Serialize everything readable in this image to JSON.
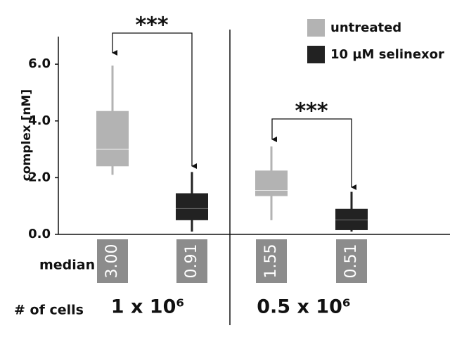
{
  "chart_data": {
    "type": "box",
    "ylabel": "complex [nM]",
    "ylim": [
      0,
      7
    ],
    "yticks": [
      {
        "value": 0,
        "label": "0.0"
      },
      {
        "value": 2,
        "label": "2.0"
      },
      {
        "value": 4,
        "label": "4.0"
      },
      {
        "value": 6,
        "label": "6.0"
      }
    ],
    "groups": [
      "1 x 10⁶",
      "0.5 x 10⁶"
    ],
    "row_labels": [
      "median",
      "# of cells"
    ],
    "series": [
      {
        "name": "untreated",
        "color": "#b3b3b3",
        "boxes": [
          {
            "low": 2.1,
            "q1": 2.4,
            "median": 3.0,
            "q3": 4.35,
            "high": 5.95
          },
          {
            "low": 0.5,
            "q1": 1.35,
            "median": 1.55,
            "q3": 2.25,
            "high": 3.1
          }
        ],
        "median_labels": [
          "3.00",
          "1.55"
        ]
      },
      {
        "name": "10 µM selinexor",
        "color": "#222222",
        "boxes": [
          {
            "low": 0.1,
            "q1": 0.5,
            "median": 0.91,
            "q3": 1.45,
            "high": 2.2
          },
          {
            "low": 0.1,
            "q1": 0.15,
            "median": 0.51,
            "q3": 0.9,
            "high": 1.5
          }
        ],
        "median_labels": [
          "0.91",
          "0.51"
        ]
      }
    ],
    "annotations": [
      "***",
      "***"
    ]
  }
}
